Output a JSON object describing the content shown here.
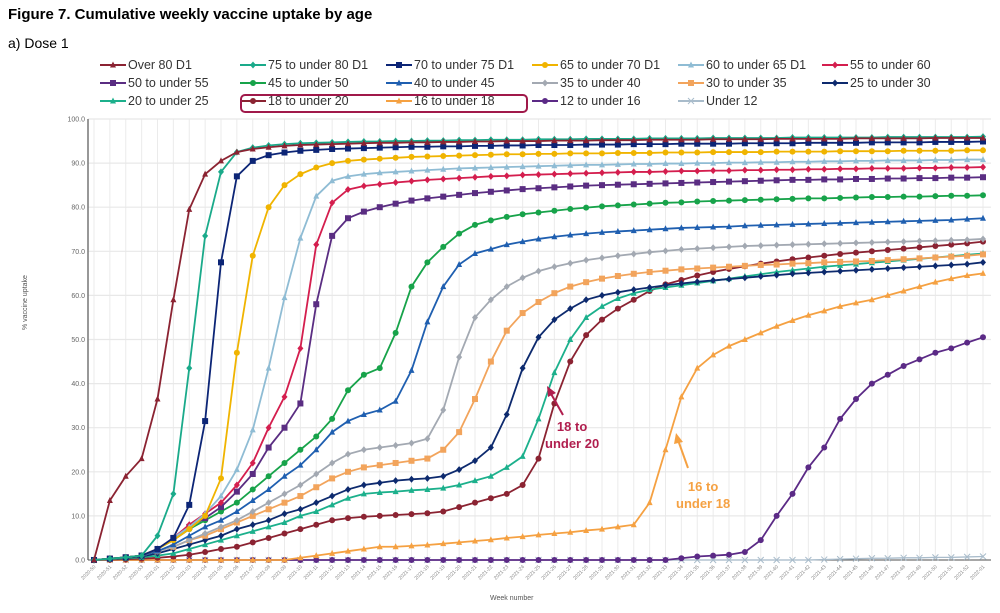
{
  "figure": {
    "title": "Figure 7. Cumulative weekly vaccine uptake by age",
    "subtitle": "a) Dose 1"
  },
  "chart_data": {
    "type": "line",
    "title": "Cumulative weekly vaccine uptake by age",
    "subtitle": "a) Dose 1",
    "xlabel": "Week number",
    "ylabel": "% vaccine uptake",
    "ylim": [
      0,
      100
    ],
    "yticks": [
      "0.0",
      "10.0",
      "20.0",
      "30.0",
      "40.0",
      "50.0",
      "60.0",
      "70.0",
      "80.0",
      "90.0",
      "100.0"
    ],
    "grid": true,
    "legend_position": "top",
    "highlighted_legend_entries": [
      "18 to under 20",
      "16 to under 18"
    ],
    "x": [
      "2020-50",
      "2020-51",
      "2020-52",
      "2020-53",
      "2021-01",
      "2021-02",
      "2021-03",
      "2021-04",
      "2021-05",
      "2021-06",
      "2021-07",
      "2021-08",
      "2021-09",
      "2021-10",
      "2021-11",
      "2021-12",
      "2021-13",
      "2021-14",
      "2021-15",
      "2021-16",
      "2021-17",
      "2021-18",
      "2021-19",
      "2021-20",
      "2021-21",
      "2021-22",
      "2021-23",
      "2021-24",
      "2021-25",
      "2021-26",
      "2021-27",
      "2021-28",
      "2021-29",
      "2021-30",
      "2021-31",
      "2021-32",
      "2021-33",
      "2021-34",
      "2021-35",
      "2021-36",
      "2021-37",
      "2021-38",
      "2021-39",
      "2021-40",
      "2021-41",
      "2021-42",
      "2021-43",
      "2021-44",
      "2021-45",
      "2021-46",
      "2021-47",
      "2021-48",
      "2021-49",
      "2021-50",
      "2021-51",
      "2021-52",
      "2022-01"
    ],
    "series": [
      {
        "name": "Over 80 D1",
        "color": "#8b2332",
        "marker": "triangle",
        "values": [
          0,
          13.5,
          19,
          23,
          36.5,
          59,
          79.5,
          87.5,
          90.5,
          92.5,
          93.2,
          93.6,
          93.9,
          94.1,
          94.2,
          94.3,
          94.4,
          94.5,
          94.6,
          94.6,
          94.7,
          94.7,
          94.8,
          94.8,
          94.9,
          94.9,
          95.0,
          95.0,
          95.0,
          95.1,
          95.1,
          95.1,
          95.2,
          95.2,
          95.2,
          95.3,
          95.3,
          95.3,
          95.3,
          95.4,
          95.4,
          95.4,
          95.4,
          95.5,
          95.5,
          95.5,
          95.5,
          95.5,
          95.6,
          95.6,
          95.6,
          95.6,
          95.6,
          95.7,
          95.7,
          95.7,
          95.7
        ]
      },
      {
        "name": "75 to under 80 D1",
        "color": "#1aaa8a",
        "marker": "diamond",
        "values": [
          0,
          0.3,
          0.6,
          1.0,
          5.5,
          15,
          43.5,
          73.5,
          88,
          92.5,
          93.5,
          94.0,
          94.3,
          94.5,
          94.6,
          94.7,
          94.8,
          94.9,
          94.9,
          95.0,
          95.0,
          95.1,
          95.1,
          95.2,
          95.2,
          95.3,
          95.3,
          95.3,
          95.4,
          95.4,
          95.4,
          95.5,
          95.5,
          95.5,
          95.5,
          95.6,
          95.6,
          95.6,
          95.6,
          95.7,
          95.7,
          95.7,
          95.7,
          95.7,
          95.8,
          95.8,
          95.8,
          95.8,
          95.8,
          95.8,
          95.9,
          95.9,
          95.9,
          95.9,
          95.9,
          95.9,
          96.0
        ]
      },
      {
        "name": "70 to under 75 D1",
        "color": "#0c2576",
        "marker": "square",
        "values": [
          0,
          0.3,
          0.6,
          1.0,
          2.5,
          5,
          12.5,
          31.5,
          67.5,
          87,
          90.5,
          91.8,
          92.4,
          92.8,
          93.0,
          93.2,
          93.3,
          93.4,
          93.5,
          93.6,
          93.7,
          93.7,
          93.8,
          93.8,
          93.9,
          93.9,
          94.0,
          94.0,
          94.1,
          94.1,
          94.1,
          94.2,
          94.2,
          94.2,
          94.3,
          94.3,
          94.3,
          94.4,
          94.4,
          94.4,
          94.4,
          94.5,
          94.5,
          94.5,
          94.5,
          94.6,
          94.6,
          94.6,
          94.6,
          94.7,
          94.7,
          94.7,
          94.7,
          94.8,
          94.8,
          94.8,
          94.9
        ]
      },
      {
        "name": "65 to under 70 D1",
        "color": "#f0b400",
        "marker": "circle",
        "values": [
          0,
          0.3,
          0.6,
          1.0,
          2.5,
          4.5,
          7,
          10,
          18.5,
          47,
          69,
          80,
          85,
          87.5,
          89,
          90,
          90.5,
          90.8,
          91.0,
          91.2,
          91.4,
          91.5,
          91.6,
          91.7,
          91.8,
          91.9,
          92.0,
          92.0,
          92.1,
          92.1,
          92.2,
          92.2,
          92.2,
          92.3,
          92.3,
          92.3,
          92.4,
          92.4,
          92.4,
          92.5,
          92.5,
          92.5,
          92.5,
          92.6,
          92.6,
          92.6,
          92.6,
          92.7,
          92.7,
          92.7,
          92.7,
          92.8,
          92.8,
          92.8,
          92.8,
          92.9,
          92.9
        ]
      },
      {
        "name": "60 to under 65 D1",
        "color": "#8fbcd4",
        "marker": "triangle",
        "values": [
          0,
          0.3,
          0.6,
          1.0,
          2.5,
          5,
          7.5,
          10.5,
          14.5,
          20.5,
          29.5,
          43.5,
          59.5,
          73,
          82.5,
          86,
          87,
          87.5,
          87.8,
          88.0,
          88.2,
          88.4,
          88.6,
          88.8,
          88.9,
          89.0,
          89.1,
          89.2,
          89.3,
          89.4,
          89.5,
          89.6,
          89.6,
          89.7,
          89.8,
          89.8,
          89.9,
          89.9,
          90.0,
          90.0,
          90.1,
          90.1,
          90.2,
          90.2,
          90.3,
          90.3,
          90.4,
          90.4,
          90.5,
          90.5,
          90.6,
          90.6,
          90.6,
          90.7,
          90.7,
          90.8,
          90.8
        ]
      },
      {
        "name": "55 to under 60",
        "color": "#d41e4e",
        "marker": "diamond",
        "values": [
          0,
          0.3,
          0.6,
          1.0,
          2.5,
          5,
          8,
          10.5,
          13,
          17,
          22,
          30,
          37,
          48,
          71.5,
          81,
          84,
          84.8,
          85.2,
          85.6,
          85.9,
          86.2,
          86.4,
          86.6,
          86.8,
          87.0,
          87.1,
          87.3,
          87.4,
          87.5,
          87.6,
          87.7,
          87.8,
          87.9,
          88.0,
          88.0,
          88.1,
          88.2,
          88.2,
          88.3,
          88.3,
          88.4,
          88.4,
          88.5,
          88.5,
          88.6,
          88.6,
          88.7,
          88.7,
          88.8,
          88.8,
          88.8,
          88.9,
          88.9,
          89.0,
          89.0,
          89.1
        ]
      },
      {
        "name": "50 to under 55",
        "color": "#5a2d82",
        "marker": "square",
        "values": [
          0,
          0.3,
          0.6,
          1.0,
          2.5,
          5,
          7.5,
          9.5,
          12,
          15.5,
          19.5,
          25.5,
          30,
          35.5,
          58,
          73.5,
          77.5,
          79,
          80,
          80.8,
          81.5,
          82.0,
          82.4,
          82.8,
          83.2,
          83.5,
          83.8,
          84.1,
          84.3,
          84.5,
          84.7,
          84.9,
          85.0,
          85.1,
          85.2,
          85.3,
          85.4,
          85.5,
          85.6,
          85.7,
          85.8,
          85.9,
          86.0,
          86.1,
          86.2,
          86.2,
          86.3,
          86.3,
          86.4,
          86.4,
          86.5,
          86.5,
          86.6,
          86.6,
          86.7,
          86.7,
          86.8
        ]
      },
      {
        "name": "45 to under 50",
        "color": "#17a34a",
        "marker": "circle",
        "values": [
          0,
          0.3,
          0.6,
          1.0,
          2.5,
          4.5,
          7,
          9,
          11,
          13,
          16,
          19,
          22,
          25,
          28,
          32,
          38.5,
          42,
          43.5,
          51.5,
          62,
          67.5,
          71,
          74,
          76,
          77,
          77.8,
          78.4,
          78.8,
          79.2,
          79.6,
          79.9,
          80.2,
          80.4,
          80.6,
          80.8,
          81.0,
          81.1,
          81.3,
          81.4,
          81.5,
          81.6,
          81.7,
          81.8,
          81.9,
          82.0,
          82.0,
          82.1,
          82.2,
          82.3,
          82.3,
          82.4,
          82.4,
          82.5,
          82.6,
          82.6,
          82.7
        ]
      },
      {
        "name": "40 to under 45",
        "color": "#1f5fb0",
        "marker": "triangle",
        "values": [
          0,
          0.3,
          0.6,
          1.0,
          2,
          3.5,
          5.5,
          7.5,
          9,
          11,
          13.5,
          16,
          19,
          21.5,
          25,
          29,
          31.5,
          33,
          34,
          36,
          43,
          54,
          62,
          67,
          69.5,
          70.5,
          71.5,
          72.2,
          72.8,
          73.3,
          73.7,
          74.0,
          74.3,
          74.5,
          74.7,
          74.9,
          75.1,
          75.3,
          75.4,
          75.5,
          75.6,
          75.8,
          75.9,
          76.0,
          76.1,
          76.2,
          76.3,
          76.4,
          76.5,
          76.6,
          76.7,
          76.8,
          76.9,
          77.0,
          77.1,
          77.3,
          77.5
        ]
      },
      {
        "name": "35 to under 40",
        "color": "#a3a9b2",
        "marker": "diamond",
        "values": [
          0,
          0.3,
          0.6,
          1.0,
          2,
          3,
          4.5,
          6,
          7.5,
          9,
          11,
          13,
          15,
          17,
          19.5,
          22,
          24,
          25,
          25.5,
          26,
          26.5,
          27.5,
          34,
          46,
          55,
          59,
          62,
          64,
          65.5,
          66.5,
          67.3,
          68.0,
          68.5,
          69.0,
          69.4,
          69.8,
          70.1,
          70.4,
          70.6,
          70.8,
          71.0,
          71.2,
          71.3,
          71.4,
          71.5,
          71.6,
          71.7,
          71.8,
          71.9,
          72.0,
          72.1,
          72.2,
          72.3,
          72.4,
          72.5,
          72.6,
          72.8
        ]
      },
      {
        "name": "30 to under 35",
        "color": "#f2a45c",
        "marker": "square",
        "values": [
          0,
          0.3,
          0.6,
          1.0,
          2,
          3,
          4.5,
          5.5,
          7,
          8.5,
          10,
          11.5,
          13,
          14.5,
          16.5,
          18.5,
          20,
          21,
          21.5,
          22,
          22.5,
          23,
          25,
          29,
          36.5,
          45,
          52,
          56,
          58.5,
          60.5,
          62,
          63,
          63.8,
          64.4,
          64.9,
          65.3,
          65.6,
          65.9,
          66.1,
          66.3,
          66.5,
          66.7,
          66.9,
          67.0,
          67.2,
          67.3,
          67.5,
          67.6,
          67.7,
          67.8,
          68.0,
          68.2,
          68.4,
          68.6,
          68.8,
          69.0,
          69.3
        ]
      },
      {
        "name": "25 to under 30",
        "color": "#0d2a6e",
        "marker": "diamond",
        "values": [
          0,
          0.3,
          0.5,
          0.8,
          1.5,
          2.5,
          3.5,
          4.5,
          5.5,
          7,
          8,
          9,
          10.5,
          11.5,
          13,
          14.5,
          16,
          17,
          17.5,
          18,
          18.3,
          18.5,
          19,
          20.5,
          22.5,
          25.5,
          33,
          43.5,
          50.5,
          54.5,
          57,
          59,
          60,
          60.7,
          61.3,
          61.8,
          62.3,
          62.7,
          63.1,
          63.4,
          63.7,
          64.0,
          64.3,
          64.6,
          64.9,
          65.1,
          65.3,
          65.5,
          65.7,
          65.9,
          66.1,
          66.3,
          66.5,
          66.7,
          66.9,
          67.1,
          67.5
        ]
      },
      {
        "name": "20 to under 25",
        "color": "#1cb08c",
        "marker": "triangle",
        "values": [
          0,
          0.2,
          0.4,
          0.6,
          1,
          1.5,
          2.5,
          3.5,
          4.5,
          5.5,
          6.5,
          7.5,
          8.5,
          10,
          11,
          12.5,
          14,
          15,
          15.3,
          15.5,
          15.8,
          16,
          16.3,
          17,
          18,
          19,
          21,
          23.5,
          32,
          42.5,
          50,
          55,
          57.5,
          59.3,
          60.5,
          61.3,
          61.8,
          62.3,
          62.8,
          63.3,
          63.8,
          64.3,
          64.8,
          65.3,
          65.7,
          66.1,
          66.5,
          66.8,
          67.1,
          67.4,
          67.7,
          68.0,
          68.3,
          68.6,
          68.9,
          69.2,
          69.5
        ]
      },
      {
        "name": "18 to under 20",
        "color": "#8b2332",
        "marker": "circle",
        "values": [
          0,
          0.1,
          0.2,
          0.3,
          0.5,
          0.8,
          1.2,
          1.8,
          2.5,
          3,
          4,
          5,
          6,
          7,
          8,
          9,
          9.5,
          9.8,
          10,
          10.2,
          10.4,
          10.6,
          11,
          12,
          13,
          14,
          15,
          17,
          23,
          35.5,
          45,
          51,
          54.5,
          57,
          59,
          61,
          62.5,
          63.5,
          64.5,
          65.3,
          66.0,
          66.6,
          67.2,
          67.7,
          68.2,
          68.6,
          69.0,
          69.4,
          69.7,
          70.0,
          70.3,
          70.6,
          70.9,
          71.2,
          71.5,
          71.8,
          72.2
        ]
      },
      {
        "name": "16 to under 18",
        "color": "#f5a142",
        "marker": "triangle",
        "values": [
          0,
          0,
          0,
          0,
          0,
          0,
          0,
          0,
          0,
          0,
          0,
          0,
          0,
          0.5,
          1,
          1.5,
          2,
          2.5,
          3,
          3,
          3.2,
          3.4,
          3.7,
          4,
          4.3,
          4.6,
          5,
          5.3,
          5.7,
          6,
          6.3,
          6.7,
          7,
          7.5,
          8,
          13,
          25,
          37,
          43.5,
          46.5,
          48.5,
          50,
          51.5,
          53,
          54.3,
          55.5,
          56.5,
          57.5,
          58.3,
          59,
          60,
          61,
          62,
          63,
          63.8,
          64.5,
          65
        ]
      },
      {
        "name": "12 to under 16",
        "color": "#5b2a86",
        "marker": "circle",
        "values": [
          0,
          0,
          0,
          0,
          0,
          0,
          0,
          0,
          0,
          0,
          0,
          0,
          0,
          0,
          0,
          0,
          0,
          0,
          0,
          0,
          0,
          0,
          0,
          0,
          0,
          0,
          0,
          0,
          0,
          0,
          0,
          0,
          0,
          0,
          0,
          0,
          0,
          0.4,
          0.8,
          1.0,
          1.2,
          1.8,
          4.5,
          10,
          15,
          21,
          25.5,
          32,
          36.5,
          40,
          42,
          44,
          45.5,
          47,
          48,
          49.3,
          50.5
        ]
      },
      {
        "name": "Under 12",
        "color": "#a9bccb",
        "marker": "x",
        "values": [
          0,
          0,
          0,
          0,
          0,
          0,
          0,
          0,
          0,
          0,
          0,
          0,
          0,
          0,
          0,
          0,
          0,
          0,
          0,
          0,
          0,
          0,
          0,
          0,
          0,
          0,
          0,
          0,
          0,
          0,
          0,
          0,
          0,
          0,
          0,
          0,
          0,
          0,
          0,
          0,
          0,
          0,
          0,
          0,
          0,
          0,
          0.1,
          0.2,
          0.3,
          0.4,
          0.4,
          0.5,
          0.5,
          0.6,
          0.6,
          0.7,
          0.8
        ]
      }
    ],
    "annotations": [
      {
        "text_line1": "18 to",
        "text_line2": "under 20",
        "color": "#b01e4e",
        "series": "18 to under 20"
      },
      {
        "text_line1": "16 to",
        "text_line2": "under 18",
        "color": "#f5a142",
        "series": "16 to under 18"
      }
    ]
  }
}
